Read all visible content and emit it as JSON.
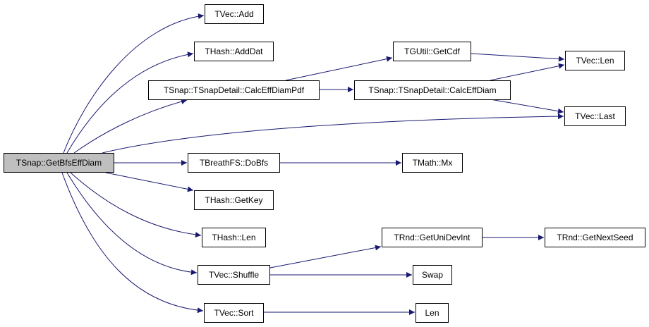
{
  "colors": {
    "edge": "#191970",
    "root_fill": "#bfbfbf",
    "node_fill": "#ffffff",
    "border": "#000000"
  },
  "nodes": [
    {
      "id": "root",
      "label": "TSnap::GetBfsEffDiam",
      "root": true
    },
    {
      "id": "vec_add",
      "label": "TVec::Add"
    },
    {
      "id": "hash_adddat",
      "label": "THash::AddDat"
    },
    {
      "id": "calc_pdf",
      "label": "TSnap::TSnapDetail::CalcEffDiamPdf"
    },
    {
      "id": "dobfs",
      "label": "TBreathFS::DoBfs"
    },
    {
      "id": "hash_getkey",
      "label": "THash::GetKey"
    },
    {
      "id": "hash_len",
      "label": "THash::Len"
    },
    {
      "id": "vec_shuffle",
      "label": "TVec::Shuffle"
    },
    {
      "id": "vec_sort",
      "label": "TVec::Sort"
    },
    {
      "id": "getcdf",
      "label": "TGUtil::GetCdf"
    },
    {
      "id": "calc_diam",
      "label": "TSnap::TSnapDetail::CalcEffDiam"
    },
    {
      "id": "vec_len",
      "label": "TVec::Len"
    },
    {
      "id": "vec_last",
      "label": "TVec::Last"
    },
    {
      "id": "math_mx",
      "label": "TMath::Mx"
    },
    {
      "id": "uni_dev_int",
      "label": "TRnd::GetUniDevInt"
    },
    {
      "id": "next_seed",
      "label": "TRnd::GetNextSeed"
    },
    {
      "id": "swap",
      "label": "Swap"
    },
    {
      "id": "len",
      "label": "Len"
    }
  ],
  "edges": [
    {
      "from": "root",
      "to": "vec_add"
    },
    {
      "from": "root",
      "to": "hash_adddat"
    },
    {
      "from": "root",
      "to": "calc_pdf"
    },
    {
      "from": "root",
      "to": "vec_last"
    },
    {
      "from": "root",
      "to": "dobfs"
    },
    {
      "from": "root",
      "to": "hash_getkey"
    },
    {
      "from": "root",
      "to": "hash_len"
    },
    {
      "from": "root",
      "to": "vec_shuffle"
    },
    {
      "from": "root",
      "to": "vec_sort"
    },
    {
      "from": "calc_pdf",
      "to": "getcdf"
    },
    {
      "from": "calc_pdf",
      "to": "calc_diam"
    },
    {
      "from": "getcdf",
      "to": "vec_len"
    },
    {
      "from": "calc_diam",
      "to": "vec_len"
    },
    {
      "from": "calc_diam",
      "to": "vec_last"
    },
    {
      "from": "dobfs",
      "to": "math_mx"
    },
    {
      "from": "vec_shuffle",
      "to": "uni_dev_int"
    },
    {
      "from": "vec_shuffle",
      "to": "swap"
    },
    {
      "from": "vec_sort",
      "to": "len"
    },
    {
      "from": "uni_dev_int",
      "to": "next_seed"
    }
  ]
}
